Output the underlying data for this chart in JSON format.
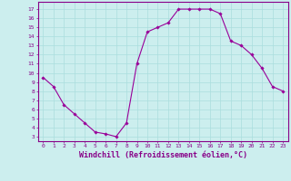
{
  "x": [
    0,
    1,
    2,
    3,
    4,
    5,
    6,
    7,
    8,
    9,
    10,
    11,
    12,
    13,
    14,
    15,
    16,
    17,
    18,
    19,
    20,
    21,
    22,
    23
  ],
  "y": [
    9.5,
    8.5,
    6.5,
    5.5,
    4.5,
    3.5,
    3.3,
    3.0,
    4.5,
    11.0,
    14.5,
    15.0,
    15.5,
    17.0,
    17.0,
    17.0,
    17.0,
    16.5,
    13.5,
    13.0,
    12.0,
    10.5,
    8.5,
    8.0
  ],
  "line_color": "#990099",
  "marker": "D",
  "marker_size": 1.8,
  "linewidth": 0.8,
  "xlabel": "Windchill (Refroidissement éolien,°C)",
  "xlabel_fontsize": 6.0,
  "ytick_labels": [
    "3",
    "4",
    "5",
    "6",
    "7",
    "8",
    "9",
    "10",
    "11",
    "12",
    "13",
    "14",
    "15",
    "16",
    "17"
  ],
  "ytick_values": [
    3,
    4,
    5,
    6,
    7,
    8,
    9,
    10,
    11,
    12,
    13,
    14,
    15,
    16,
    17
  ],
  "xtick_labels": [
    "0",
    "1",
    "2",
    "3",
    "4",
    "5",
    "6",
    "7",
    "8",
    "9",
    "10",
    "11",
    "12",
    "13",
    "14",
    "15",
    "16",
    "17",
    "18",
    "19",
    "20",
    "21",
    "22",
    "23"
  ],
  "ylim": [
    2.5,
    17.8
  ],
  "xlim": [
    -0.5,
    23.5
  ],
  "grid_color": "#aadddd",
  "bg_color": "#cceeee",
  "tick_color": "#880088",
  "tick_fontsize": 4.5,
  "xlabel_color": "#880088",
  "spine_color": "#880088"
}
